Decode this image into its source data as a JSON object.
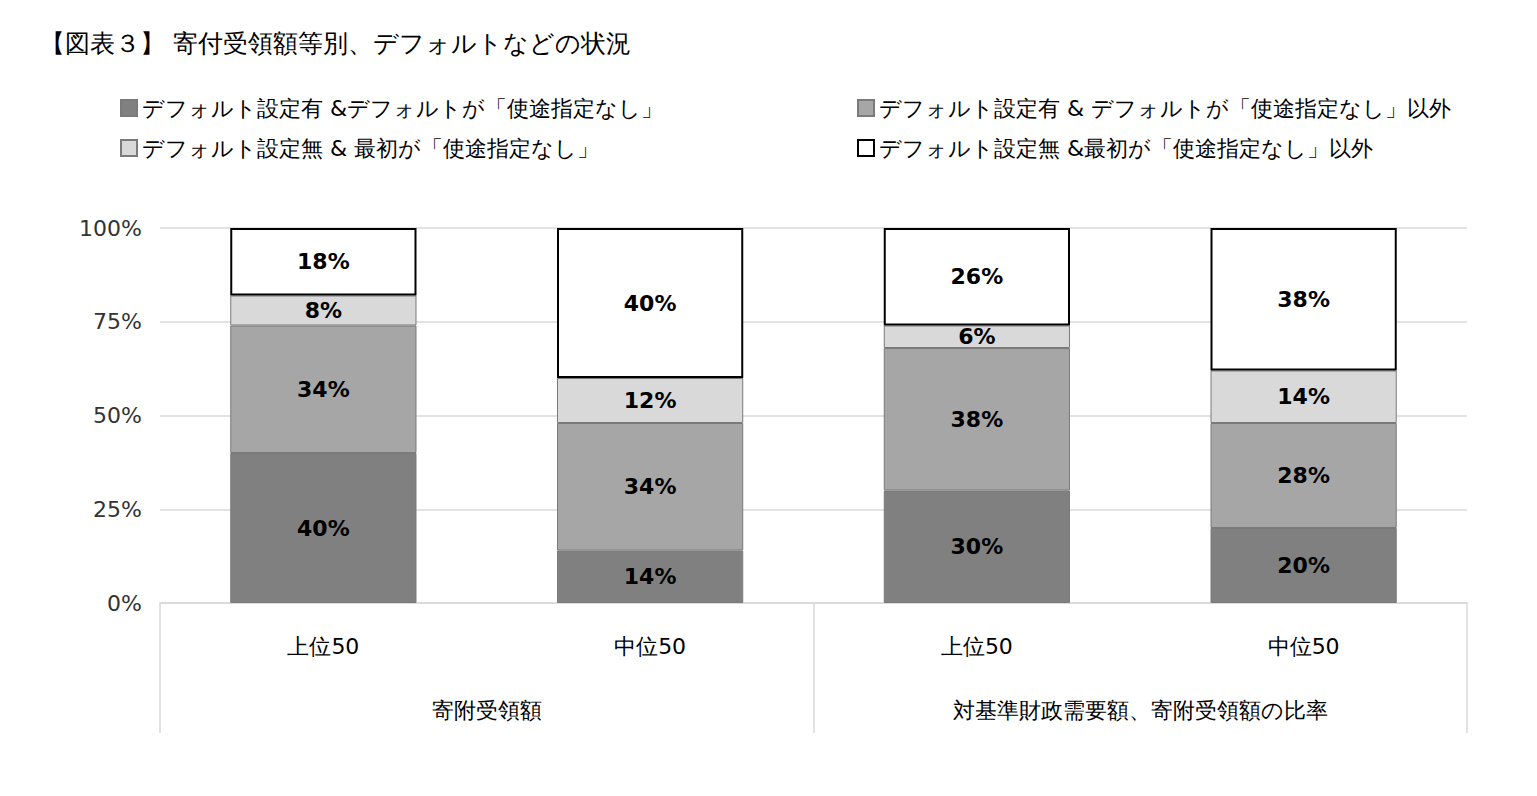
{
  "chart_data": {
    "type": "bar",
    "title": "【図表３】 寄付受領額等別、デフォルトなどの状況",
    "categories": [
      "上位50",
      "中位50",
      "上位50",
      "中位50"
    ],
    "category_groups": [
      "寄附受領額",
      "寄附受領額",
      "対基準財政需要額、寄附受領額の比率",
      "対基準財政需要額、寄附受領額の比率"
    ],
    "series": [
      {
        "name": "デフォルト設定有 &デフォルトが「使途指定なし」",
        "color": "#808080",
        "values": [
          40,
          14,
          30,
          20
        ],
        "value_labels": [
          "40%",
          "14%",
          "30%",
          "20%"
        ]
      },
      {
        "name": "デフォルト設定有 & デフォルトが「使途指定なし」以外",
        "color": "#a6a6a6",
        "values": [
          34,
          34,
          38,
          28
        ],
        "value_labels": [
          "34%",
          "34%",
          "38%",
          "28%"
        ]
      },
      {
        "name": "デフォルト設定無 & 最初が「使途指定なし」",
        "color": "#d9d9d9",
        "values": [
          8,
          12,
          6,
          14
        ],
        "value_labels": [
          "8%",
          "12%",
          "6%",
          "14%"
        ]
      },
      {
        "name": "デフォルト設定無 &最初が「使途指定なし」以外",
        "color": "#ffffff",
        "values": [
          18,
          40,
          26,
          38
        ],
        "value_labels": [
          "18%",
          "40%",
          "26%",
          "38%"
        ]
      }
    ],
    "ylim": [
      0,
      100
    ],
    "yticks": [
      {
        "value": 0,
        "label": "0%"
      },
      {
        "value": 25,
        "label": "25%"
      },
      {
        "value": 50,
        "label": "50%"
      },
      {
        "value": 75,
        "label": "75%"
      },
      {
        "value": 100,
        "label": "100%"
      }
    ],
    "grid": true,
    "stacked": true,
    "data_labels": true,
    "legend": "top"
  }
}
